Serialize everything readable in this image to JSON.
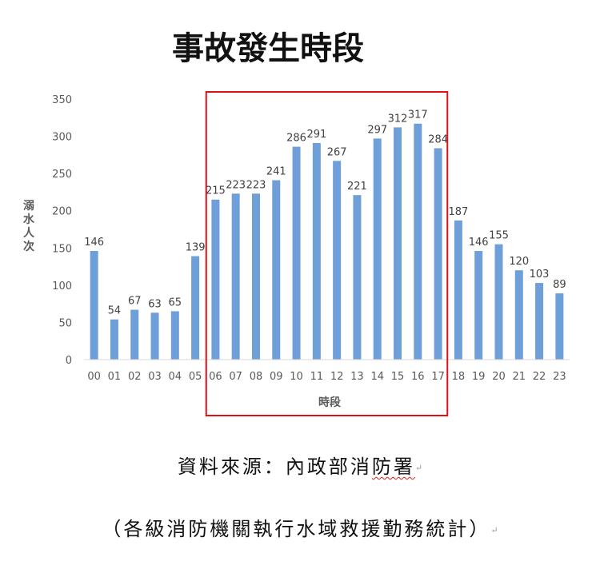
{
  "chart_data": {
    "type": "bar",
    "title": "事故發生時段",
    "xlabel": "時段",
    "ylabel": "溺水人次",
    "ylim": [
      0,
      350
    ],
    "yticks": [
      0,
      50,
      100,
      150,
      200,
      250,
      300,
      350
    ],
    "grid": false,
    "legend": "none",
    "bar_color": "#6f9fd8",
    "highlight_color": "#e0101a",
    "highlight_range": [
      "06",
      "17"
    ],
    "categories": [
      "00",
      "01",
      "02",
      "03",
      "04",
      "05",
      "06",
      "07",
      "08",
      "09",
      "10",
      "11",
      "12",
      "13",
      "14",
      "15",
      "16",
      "17",
      "18",
      "19",
      "20",
      "21",
      "22",
      "23"
    ],
    "values": [
      146,
      54,
      67,
      63,
      65,
      139,
      215,
      223,
      223,
      241,
      286,
      291,
      267,
      221,
      297,
      312,
      317,
      284,
      187,
      146,
      155,
      120,
      103,
      89
    ]
  },
  "source": {
    "line": "資料來源：內政部消防署",
    "line_prefix": "資料來源：內政部消",
    "line_underlined": "防署",
    "note": "（各級消防機關執行水域救援勤務統計）",
    "paragraph_mark": "↵"
  }
}
